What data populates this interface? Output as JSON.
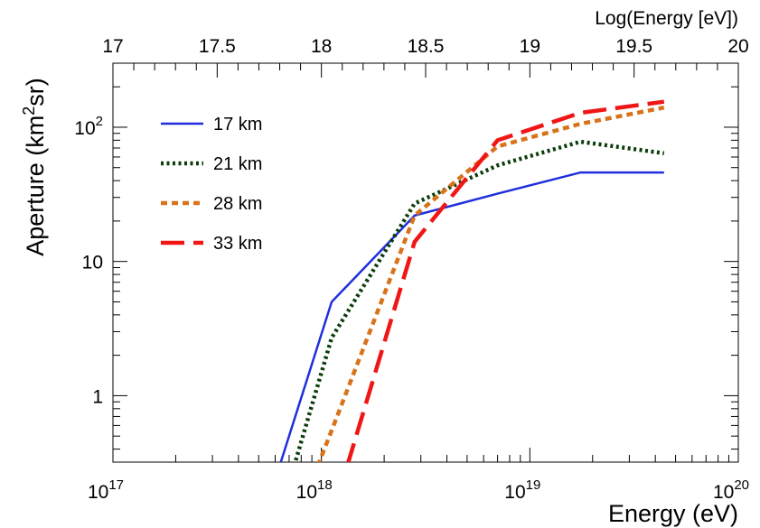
{
  "chart_data": {
    "type": "line",
    "xlabel": "Energy (eV)",
    "ylabel_main": "Aperture  (km",
    "ylabel_sup": "2",
    "ylabel_end": "sr)",
    "top_xlabel": "Log(Energy [eV])",
    "x_scale": "log",
    "y_scale": "log",
    "xlim": [
      1e+17,
      1e+20
    ],
    "ylim": [
      0.32,
      300
    ],
    "grid": false,
    "legend_placement": "top-left",
    "x_ticks": [
      {
        "value": 1e+17,
        "base": "10",
        "exp": "17"
      },
      {
        "value": 1e+18,
        "base": "10",
        "exp": "18"
      },
      {
        "value": 1e+19,
        "base": "10",
        "exp": "19"
      },
      {
        "value": 1e+20,
        "base": "10",
        "exp": "20"
      }
    ],
    "y_ticks": [
      {
        "value": 1,
        "label": "1"
      },
      {
        "value": 10,
        "label": "10"
      },
      {
        "value": 100,
        "base": "10",
        "exp": "2"
      }
    ],
    "top_ticks": [
      {
        "value": 17,
        "label": "17"
      },
      {
        "value": 17.5,
        "label": "17.5"
      },
      {
        "value": 18,
        "label": "18"
      },
      {
        "value": 18.5,
        "label": "18.5"
      },
      {
        "value": 19,
        "label": "19"
      },
      {
        "value": 19.5,
        "label": "19.5"
      },
      {
        "value": 20,
        "label": "20"
      }
    ],
    "series": [
      {
        "name": "17 km",
        "color": "#1f2fdc",
        "dash": "solid",
        "x": [
          6.3e+17,
          1.12e+18,
          2.8e+18,
          7e+18,
          1.75e+19,
          4.4e+19
        ],
        "y": [
          0.3,
          5,
          22,
          32,
          46,
          46
        ]
      },
      {
        "name": "21 km",
        "color": "#0b3d0b",
        "dash": "dotted",
        "x": [
          7.4e+17,
          1.12e+18,
          2.8e+18,
          7e+18,
          1.75e+19,
          4.4e+19
        ],
        "y": [
          0.3,
          2.7,
          27,
          52,
          78,
          64
        ]
      },
      {
        "name": "28 km",
        "color": "#d8731b",
        "dash": "dashed",
        "x": [
          9.6e+17,
          1.12e+18,
          2.8e+18,
          7e+18,
          1.75e+19,
          4.4e+19
        ],
        "y": [
          0.3,
          0.55,
          22,
          72,
          106,
          140
        ]
      },
      {
        "name": "33 km",
        "color": "#f01616",
        "dash": "longdash",
        "x": [
          1.33e+18,
          2.8e+18,
          7e+18,
          1.75e+19,
          4.4e+19
        ],
        "y": [
          0.3,
          14,
          80,
          128,
          155
        ]
      }
    ]
  }
}
